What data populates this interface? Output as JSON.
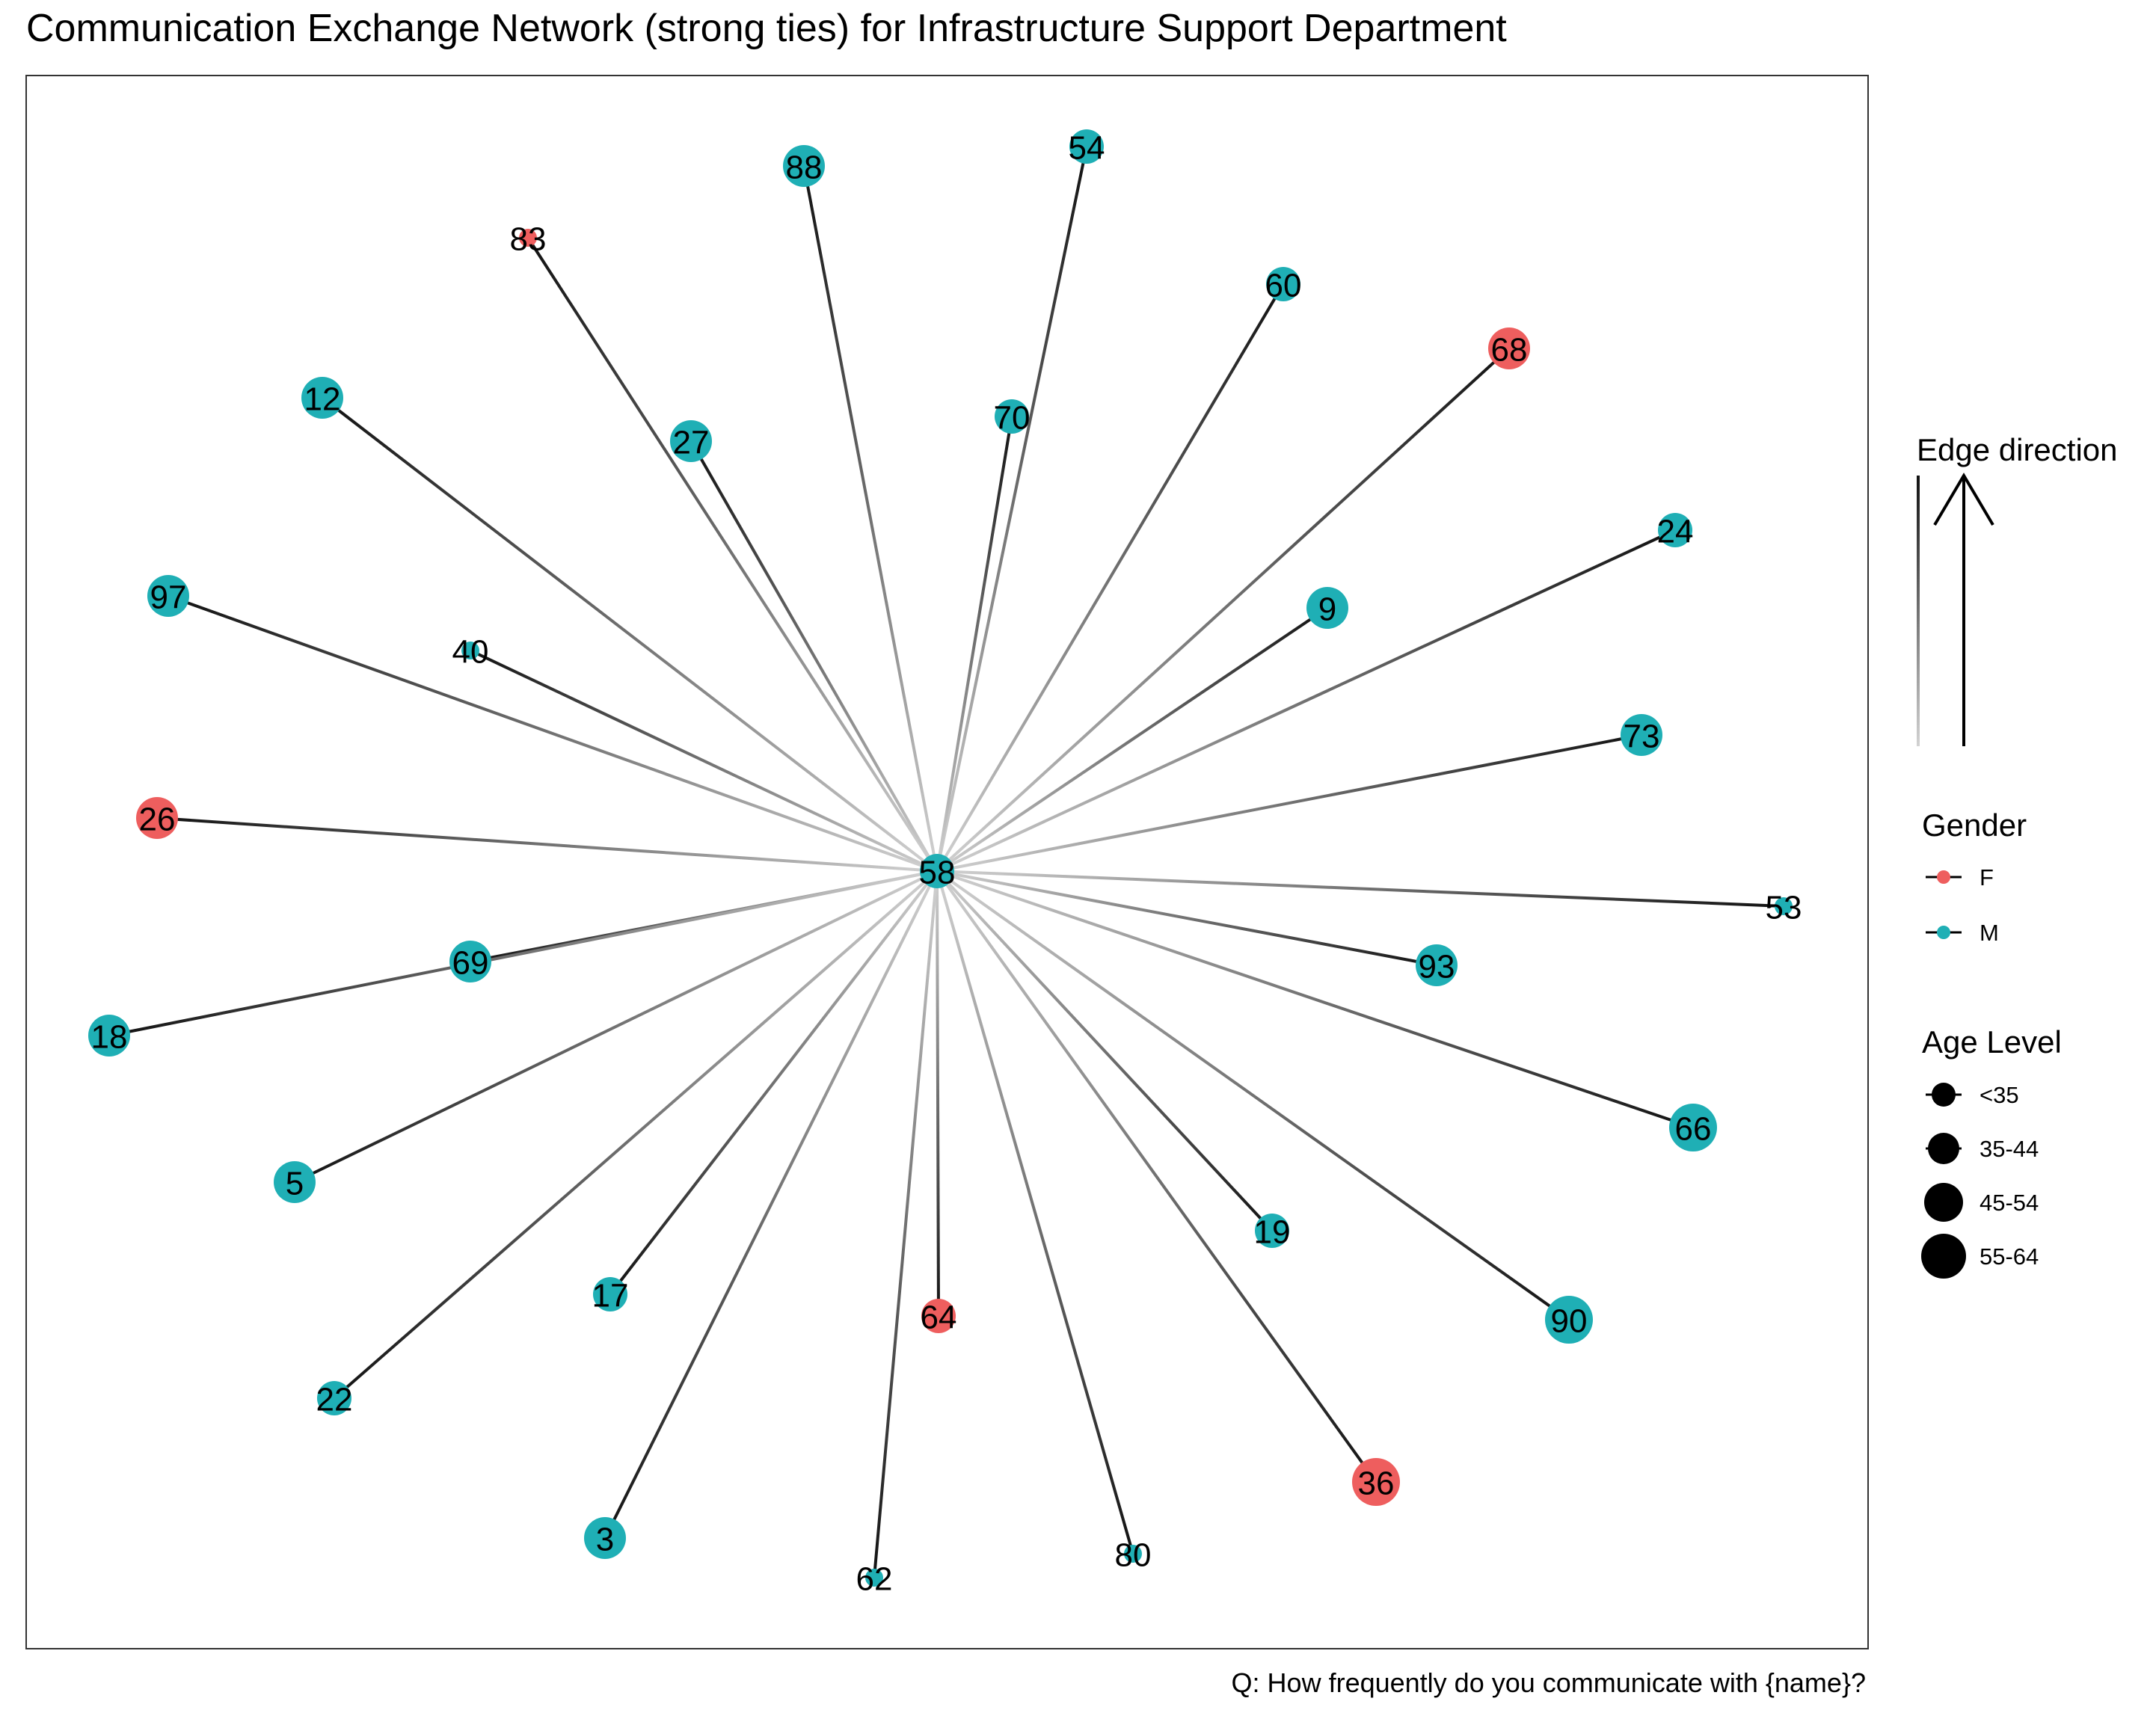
{
  "title": "Communication Exchange Network (strong ties) for Infrastructure Support Department",
  "caption": "Q: How frequently do you communicate with {name}?",
  "colors": {
    "F": "#EE5E5E",
    "M": "#1FAFB5",
    "edge_strong": "#111111",
    "edge_faint": "#D2D2D2",
    "frame": "#333333"
  },
  "legend": {
    "edge_direction_title": "Edge direction",
    "gender_title": "Gender",
    "gender_items": [
      "F",
      "M"
    ],
    "age_title": "Age Level",
    "age_items": [
      "<35",
      "35-44",
      "45-54",
      "55-64"
    ]
  },
  "chart_data": {
    "type": "network",
    "center": "58",
    "nodes": [
      {
        "id": "58",
        "gender": "M",
        "age": "35-44"
      },
      {
        "id": "83",
        "gender": "F",
        "age": "<35"
      },
      {
        "id": "88",
        "gender": "M",
        "age": "45-54"
      },
      {
        "id": "54",
        "gender": "M",
        "age": "35-44"
      },
      {
        "id": "60",
        "gender": "M",
        "age": "35-44"
      },
      {
        "id": "68",
        "gender": "F",
        "age": "45-54"
      },
      {
        "id": "12",
        "gender": "M",
        "age": "45-54"
      },
      {
        "id": "27",
        "gender": "M",
        "age": "45-54"
      },
      {
        "id": "70",
        "gender": "M",
        "age": "35-44"
      },
      {
        "id": "24",
        "gender": "M",
        "age": "35-44"
      },
      {
        "id": "97",
        "gender": "M",
        "age": "45-54"
      },
      {
        "id": "40",
        "gender": "M",
        "age": "<35"
      },
      {
        "id": "9",
        "gender": "M",
        "age": "45-54"
      },
      {
        "id": "73",
        "gender": "M",
        "age": "45-54"
      },
      {
        "id": "26",
        "gender": "F",
        "age": "45-54"
      },
      {
        "id": "53",
        "gender": "M",
        "age": "<35"
      },
      {
        "id": "69",
        "gender": "M",
        "age": "45-54"
      },
      {
        "id": "93",
        "gender": "M",
        "age": "45-54"
      },
      {
        "id": "18",
        "gender": "M",
        "age": "45-54"
      },
      {
        "id": "66",
        "gender": "M",
        "age": "55-64"
      },
      {
        "id": "5",
        "gender": "M",
        "age": "45-54"
      },
      {
        "id": "19",
        "gender": "M",
        "age": "35-44"
      },
      {
        "id": "17",
        "gender": "M",
        "age": "35-44"
      },
      {
        "id": "64",
        "gender": "F",
        "age": "35-44"
      },
      {
        "id": "90",
        "gender": "M",
        "age": "55-64"
      },
      {
        "id": "22",
        "gender": "M",
        "age": "35-44"
      },
      {
        "id": "36",
        "gender": "F",
        "age": "55-64"
      },
      {
        "id": "3",
        "gender": "M",
        "age": "45-54"
      },
      {
        "id": "62",
        "gender": "M",
        "age": "<35"
      },
      {
        "id": "80",
        "gender": "M",
        "age": "<35"
      }
    ],
    "edges": [
      [
        "58",
        "83"
      ],
      [
        "58",
        "88"
      ],
      [
        "58",
        "54"
      ],
      [
        "58",
        "60"
      ],
      [
        "58",
        "68"
      ],
      [
        "58",
        "12"
      ],
      [
        "58",
        "27"
      ],
      [
        "58",
        "70"
      ],
      [
        "58",
        "24"
      ],
      [
        "58",
        "97"
      ],
      [
        "58",
        "40"
      ],
      [
        "58",
        "9"
      ],
      [
        "58",
        "73"
      ],
      [
        "58",
        "26"
      ],
      [
        "58",
        "53"
      ],
      [
        "58",
        "69"
      ],
      [
        "58",
        "93"
      ],
      [
        "58",
        "18"
      ],
      [
        "58",
        "66"
      ],
      [
        "58",
        "5"
      ],
      [
        "58",
        "19"
      ],
      [
        "58",
        "17"
      ],
      [
        "58",
        "64"
      ],
      [
        "58",
        "90"
      ],
      [
        "58",
        "22"
      ],
      [
        "58",
        "36"
      ],
      [
        "58",
        "3"
      ],
      [
        "58",
        "62"
      ],
      [
        "58",
        "80"
      ]
    ]
  }
}
